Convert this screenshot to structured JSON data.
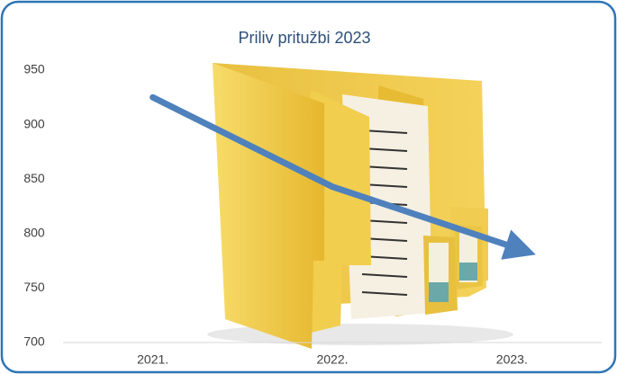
{
  "chart_data": {
    "type": "line",
    "title": "Priliv pritužbi 2023",
    "categories": [
      "2021.",
      "2022.",
      "2023."
    ],
    "values": [
      925,
      843,
      788
    ],
    "color": "#4f81bd",
    "ylim": [
      700,
      950
    ],
    "yticks": [
      700,
      750,
      800,
      850,
      900,
      950
    ],
    "grid": false
  }
}
